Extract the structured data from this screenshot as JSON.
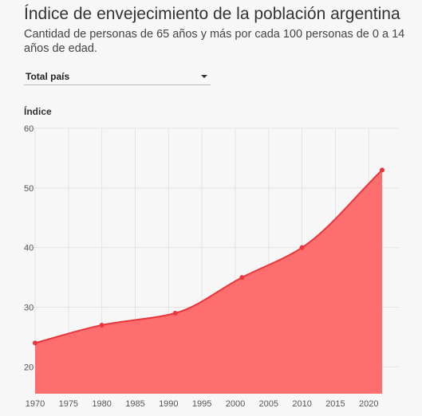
{
  "title": "Índice de envejecimiento de la población argentina",
  "subtitle": "Cantidad de personas de 65 años y más por cada 100 personas de 0 a 14 años de edad.",
  "selector": {
    "selected": "Total país",
    "icon": "chevron-down-icon"
  },
  "colors": {
    "area": "#ff6e6e",
    "line": "#e8373d",
    "point": "#e8373d",
    "grid": "#e3e3e3"
  },
  "chart_data": {
    "type": "area",
    "title": "Índice de envejecimiento de la población argentina",
    "xlabel": "",
    "ylabel": "Índice",
    "x": [
      1970,
      1980,
      1991,
      2001,
      2010,
      2022
    ],
    "series": [
      {
        "values": [
          24.0,
          27.0,
          29.0,
          35.0,
          40.0,
          53.0
        ]
      }
    ],
    "xlim": [
      1970,
      2022
    ],
    "ylim": [
      15.5,
      60
    ],
    "x_ticks": [
      "1970",
      "1975",
      "1980",
      "1985",
      "1990",
      "1995",
      "2000",
      "2005",
      "2010",
      "2015",
      "2020"
    ],
    "y_ticks": [
      "20",
      "30",
      "40",
      "50",
      "60"
    ],
    "grid": true,
    "smooth": true
  }
}
